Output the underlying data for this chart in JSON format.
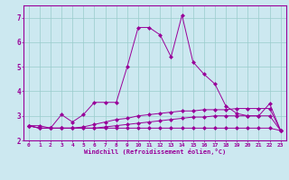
{
  "x": [
    0,
    1,
    2,
    3,
    4,
    5,
    6,
    7,
    8,
    9,
    10,
    11,
    12,
    13,
    14,
    15,
    16,
    17,
    18,
    19,
    20,
    21,
    22,
    23
  ],
  "line1": [
    2.6,
    2.6,
    2.5,
    3.05,
    2.75,
    3.05,
    3.55,
    3.55,
    3.55,
    5.0,
    6.6,
    6.6,
    6.3,
    5.4,
    7.1,
    5.2,
    4.7,
    4.3,
    3.4,
    3.1,
    3.0,
    3.0,
    3.5,
    2.4
  ],
  "line2": [
    2.6,
    2.5,
    2.5,
    2.5,
    2.5,
    2.55,
    2.65,
    2.75,
    2.85,
    2.9,
    3.0,
    3.05,
    3.1,
    3.15,
    3.2,
    3.2,
    3.25,
    3.25,
    3.25,
    3.3,
    3.3,
    3.3,
    3.3,
    2.4
  ],
  "line3": [
    2.6,
    2.5,
    2.5,
    2.5,
    2.5,
    2.5,
    2.5,
    2.55,
    2.6,
    2.65,
    2.7,
    2.75,
    2.8,
    2.85,
    2.9,
    2.95,
    2.95,
    3.0,
    3.0,
    3.0,
    3.0,
    3.0,
    3.0,
    2.4
  ],
  "line4": [
    2.6,
    2.5,
    2.5,
    2.5,
    2.5,
    2.5,
    2.5,
    2.5,
    2.5,
    2.5,
    2.5,
    2.5,
    2.5,
    2.5,
    2.5,
    2.5,
    2.5,
    2.5,
    2.5,
    2.5,
    2.5,
    2.5,
    2.5,
    2.4
  ],
  "line_color": "#990099",
  "bg_color": "#cce8f0",
  "grid_color": "#99cccc",
  "xlabel": "Windchill (Refroidissement éolien,°C)",
  "xlim_min": -0.5,
  "xlim_max": 23.5,
  "ylim_min": 2.0,
  "ylim_max": 7.5,
  "yticks": [
    2,
    3,
    4,
    5,
    6,
    7
  ],
  "xticks": [
    0,
    1,
    2,
    3,
    4,
    5,
    6,
    7,
    8,
    9,
    10,
    11,
    12,
    13,
    14,
    15,
    16,
    17,
    18,
    19,
    20,
    21,
    22,
    23
  ],
  "xlabel_fontsize": 5.0,
  "tick_fontsize": 4.5,
  "ytick_fontsize": 5.5
}
